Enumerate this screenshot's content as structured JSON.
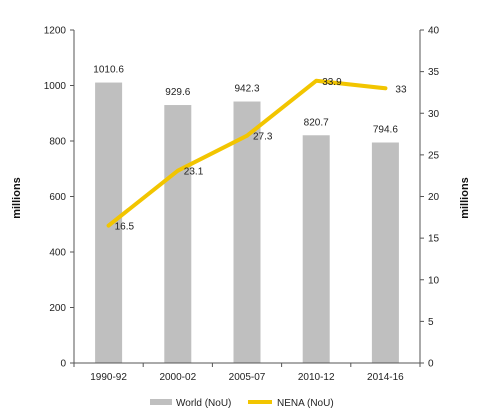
{
  "chart_data": {
    "type": "bar+line",
    "categories": [
      "1990-92",
      "2000-02",
      "2005-07",
      "2010-12",
      "2014-16"
    ],
    "series": [
      {
        "name": "World (NoU)",
        "type": "bar",
        "axis": "left",
        "values": [
          1010.6,
          929.6,
          942.3,
          820.7,
          794.6
        ],
        "labels": [
          "1010.6",
          "929.6",
          "942.3",
          "820.7",
          "794.6"
        ],
        "color": "#bfbfbf"
      },
      {
        "name": "NENA (NoU)",
        "type": "line",
        "axis": "right",
        "values": [
          16.5,
          23.1,
          27.3,
          33.9,
          33
        ],
        "labels": [
          "16.5",
          "23.1",
          "27.3",
          "33.9",
          "33"
        ],
        "color": "#f2c500"
      }
    ],
    "ylabel_left": "millions",
    "ylabel_right": "millions",
    "ylim_left": [
      0,
      1200
    ],
    "yticks_left": [
      "0",
      "200",
      "400",
      "600",
      "800",
      "1000",
      "1200"
    ],
    "ylim_right": [
      0,
      40
    ],
    "yticks_right": [
      "0",
      "5",
      "10",
      "15",
      "20",
      "25",
      "30",
      "35",
      "40"
    ],
    "grid": false,
    "legend_position": "bottom"
  }
}
